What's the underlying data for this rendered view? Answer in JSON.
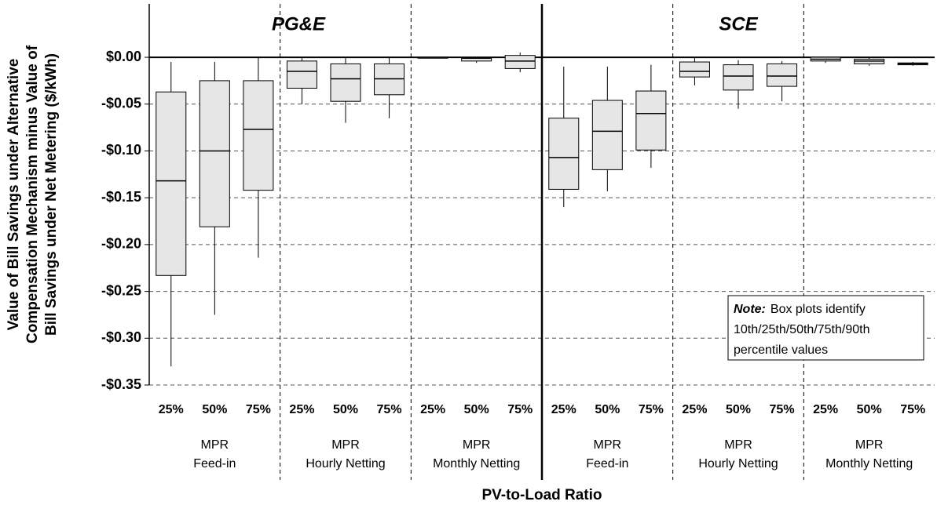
{
  "chart_data": {
    "type": "box",
    "panels": [
      "PG&E",
      "SCE"
    ],
    "categories": [
      "25%",
      "50%",
      "75%",
      "25%",
      "50%",
      "75%",
      "25%",
      "50%",
      "75%",
      "25%",
      "50%",
      "75%",
      "25%",
      "50%",
      "75%",
      "25%",
      "50%",
      "75%"
    ],
    "groups": [
      [
        "MPR",
        "Feed-in"
      ],
      [
        "MPR",
        "Hourly Netting"
      ],
      [
        "MPR",
        "Monthly Netting"
      ],
      [
        "MPR",
        "Feed-in"
      ],
      [
        "MPR",
        "Hourly Netting"
      ],
      [
        "MPR",
        "Monthly Netting"
      ]
    ],
    "boxes": [
      {
        "p10": -0.33,
        "p25": -0.233,
        "p50": -0.132,
        "p75": -0.037,
        "p90": -0.005
      },
      {
        "p10": -0.275,
        "p25": -0.181,
        "p50": -0.1,
        "p75": -0.025,
        "p90": -0.005
      },
      {
        "p10": -0.214,
        "p25": -0.142,
        "p50": -0.077,
        "p75": -0.025,
        "p90": 0.0
      },
      {
        "p10": -0.05,
        "p25": -0.033,
        "p50": -0.015,
        "p75": -0.004,
        "p90": 0.0
      },
      {
        "p10": -0.07,
        "p25": -0.047,
        "p50": -0.023,
        "p75": -0.007,
        "p90": 0.0
      },
      {
        "p10": -0.065,
        "p25": -0.04,
        "p50": -0.023,
        "p75": -0.007,
        "p90": 0.0
      },
      {
        "p10": -0.001,
        "p25": -0.001,
        "p50": 0.0,
        "p75": 0.0,
        "p90": 0.0
      },
      {
        "p10": -0.006,
        "p25": -0.004,
        "p50": -0.001,
        "p75": 0.0,
        "p90": 0.0
      },
      {
        "p10": -0.016,
        "p25": -0.012,
        "p50": -0.004,
        "p75": 0.002,
        "p90": 0.005
      },
      {
        "p10": -0.16,
        "p25": -0.141,
        "p50": -0.107,
        "p75": -0.065,
        "p90": -0.01
      },
      {
        "p10": -0.143,
        "p25": -0.12,
        "p50": -0.079,
        "p75": -0.046,
        "p90": -0.01
      },
      {
        "p10": -0.118,
        "p25": -0.099,
        "p50": -0.06,
        "p75": -0.036,
        "p90": -0.008
      },
      {
        "p10": -0.03,
        "p25": -0.021,
        "p50": -0.015,
        "p75": -0.005,
        "p90": 0.0
      },
      {
        "p10": -0.055,
        "p25": -0.035,
        "p50": -0.02,
        "p75": -0.008,
        "p90": -0.003
      },
      {
        "p10": -0.047,
        "p25": -0.031,
        "p50": -0.02,
        "p75": -0.007,
        "p90": -0.004
      },
      {
        "p10": -0.006,
        "p25": -0.004,
        "p50": -0.002,
        "p75": 0.0,
        "p90": 0.0
      },
      {
        "p10": -0.009,
        "p25": -0.007,
        "p50": -0.004,
        "p75": -0.002,
        "p90": 0.0
      },
      {
        "p10": -0.009,
        "p25": -0.008,
        "p50": -0.007,
        "p75": -0.006,
        "p90": -0.005
      }
    ],
    "color": "#e6e6e6",
    "ylim": [
      -0.35,
      0.057
    ],
    "yticks": [
      {
        "value": -0.35,
        "label": "-$0.35"
      },
      {
        "value": -0.3,
        "label": "-$0.30"
      },
      {
        "value": -0.25,
        "label": "-$0.25"
      },
      {
        "value": -0.2,
        "label": "-$0.20"
      },
      {
        "value": -0.15,
        "label": "-$0.15"
      },
      {
        "value": -0.1,
        "label": "-$0.10"
      },
      {
        "value": -0.05,
        "label": "-$0.05"
      },
      {
        "value": 0,
        "label": "$0.00"
      }
    ],
    "ylabel": [
      "Value of Bill Savings under Alternative",
      "Compensation Mechanism minus Value of",
      "Bill Savings under Net Metering ($/kWh)"
    ],
    "xlabel": "PV-to-Load Ratio",
    "note": {
      "lead": "Note:",
      "lines": [
        "Box plots identify",
        "10th/25th/50th/75th/90th",
        "percentile values"
      ]
    },
    "grid": true
  }
}
